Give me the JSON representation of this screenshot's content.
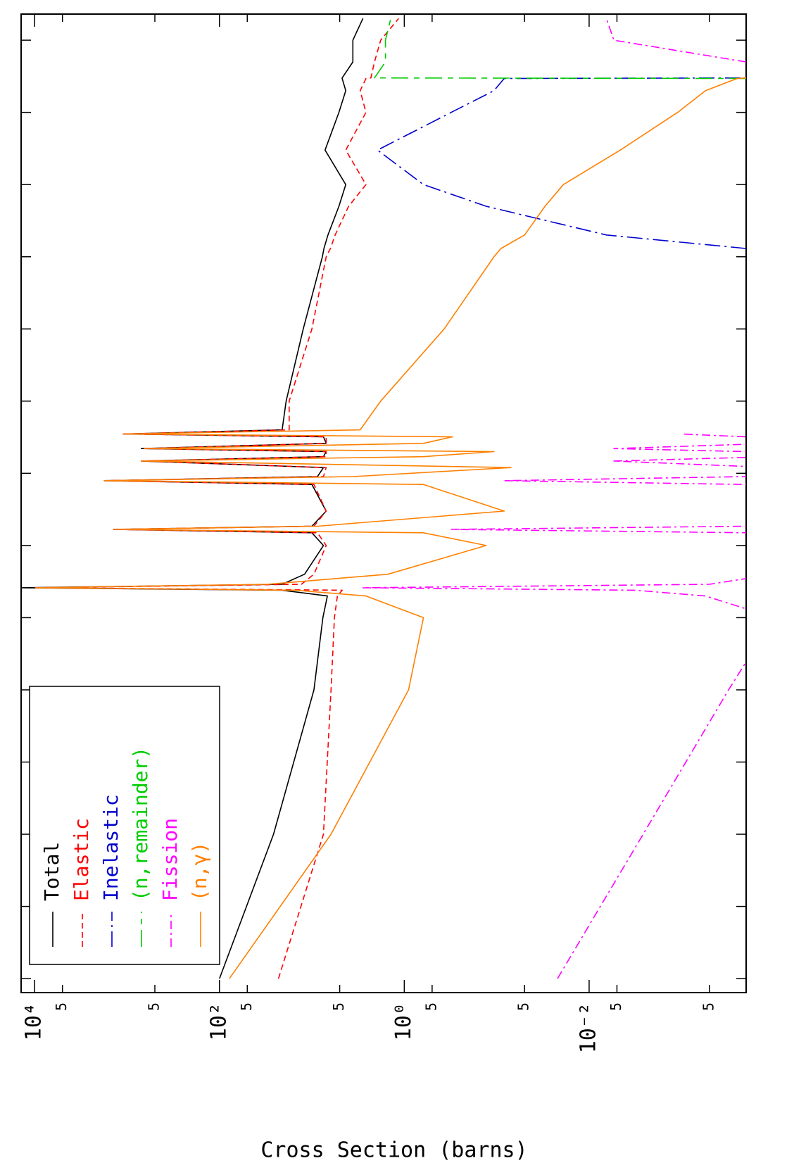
{
  "chart_data": {
    "type": "line",
    "y_label": "Cross Section (barns)",
    "xscale": "log",
    "yscale": "log",
    "xlim": [
      6.4e-07,
      23000000.0
    ],
    "ylim": [
      0.0002,
      14000
    ],
    "xticks": [
      1e-06,
      1e-05,
      0.0001,
      0.001,
      0.01,
      0.1,
      1,
      10,
      100,
      1000,
      10000,
      100000,
      1000000,
      10000000
    ],
    "yticks": [
      {
        "value": 10000,
        "label": "10⁴"
      },
      {
        "value": 5000,
        "label": "5"
      },
      {
        "value": 500,
        "label": "5"
      },
      {
        "value": 100,
        "label": "10²"
      },
      {
        "value": 50,
        "label": "5"
      },
      {
        "value": 5,
        "label": "5"
      },
      {
        "value": 1,
        "label": "10⁰"
      },
      {
        "value": 0.5,
        "label": "5"
      },
      {
        "value": 0.05,
        "label": "5"
      },
      {
        "value": 0.01,
        "label": "10⁻²"
      },
      {
        "value": 0.005,
        "label": "5"
      },
      {
        "value": 0.0005,
        "label": "5"
      }
    ],
    "grid": false,
    "legend": "upper left",
    "x": [
      1e-06,
      0.0001,
      0.01,
      0.1,
      0.2,
      0.24,
      0.26,
      0.29,
      0.4,
      1,
      1.5,
      1.67,
      1.85,
      3,
      7,
      7.9,
      9,
      12,
      14.8,
      17,
      20,
      22,
      26,
      32,
      35,
      40,
      100,
      1000,
      10000,
      13000,
      20000,
      50000,
      100000,
      300000,
      1000000,
      2000000,
      2950000,
      3000000,
      5000000,
      10000000,
      20000000
    ],
    "series": [
      {
        "name": "Total",
        "color": "#000000",
        "values": [
          100,
          26,
          9.5,
          7.6,
          6.8,
          21,
          14000,
          21,
          12,
          7.5,
          10,
          1400,
          10,
          7,
          10,
          1760,
          8.7,
          7.5,
          700,
          7.5,
          7,
          700,
          7,
          7.5,
          1100,
          21,
          19,
          12.4,
          7.7,
          7.4,
          6.7,
          5.1,
          4.3,
          7.2,
          5.1,
          4.3,
          4.7,
          4.7,
          3.6,
          3.6,
          2.8
        ]
      },
      {
        "name": "Elastic",
        "color": "#ff0000",
        "values": [
          23,
          7.5,
          6.2,
          5.7,
          5.3,
          4.7,
          9800,
          13,
          9.5,
          7,
          8.7,
          1400,
          9.5,
          7,
          9.5,
          1760,
          7.5,
          7,
          700,
          7,
          7,
          650,
          7,
          7,
          1100,
          17.6,
          17.6,
          10,
          7,
          6.3,
          5.6,
          4.0,
          2.6,
          4.3,
          2.6,
          3.0,
          2.6,
          2.3,
          2.1,
          1.8,
          1.15
        ]
      },
      {
        "name": "Inelastic",
        "color": "#0000cc",
        "values": [
          null,
          null,
          null,
          null,
          null,
          null,
          null,
          null,
          null,
          null,
          null,
          null,
          null,
          null,
          null,
          null,
          null,
          null,
          null,
          null,
          null,
          null,
          null,
          null,
          null,
          null,
          null,
          null,
          null,
          0.0002,
          0.0065,
          0.13,
          0.62,
          1.95,
          0.31,
          0.107,
          0.083,
          0.0002,
          null,
          null,
          null
        ]
      },
      {
        "name": "(n,remainder)",
        "color": "#00cc00",
        "values": [
          null,
          null,
          null,
          null,
          null,
          null,
          null,
          null,
          null,
          null,
          null,
          null,
          null,
          null,
          null,
          null,
          null,
          null,
          null,
          null,
          null,
          null,
          null,
          null,
          null,
          null,
          null,
          null,
          null,
          null,
          null,
          null,
          null,
          null,
          null,
          null,
          0.0002,
          2.1,
          1.6,
          1.6,
          1.4
        ]
      },
      {
        "name": "Fission",
        "color": "#ff00ff",
        "values": [
          0.022,
          0.0026,
          0.00031,
          0.0001,
          0.00055,
          0.0032,
          2.8,
          0.0005,
          0.0001,
          0.0001,
          0.0002,
          0.31,
          0.0002,
          0.0001,
          0.0002,
          0.083,
          0.0002,
          0.0001,
          0.0054,
          0.0001,
          0.0002,
          0.0054,
          0.0001,
          0.0002,
          0.001,
          null,
          null,
          null,
          null,
          null,
          null,
          null,
          null,
          null,
          null,
          null,
          null,
          null,
          0.0002,
          0.0054,
          0.0065
        ]
      },
      {
        "name": "(n,γ)",
        "color": "#ff8000",
        "values": [
          78,
          6.2,
          0.9,
          0.62,
          2.6,
          15,
          9800,
          30,
          1.5,
          0.13,
          0.62,
          1400,
          8.7,
          0.083,
          0.62,
          1760,
          3.6,
          0.07,
          700,
          0.62,
          0.107,
          650,
          0.62,
          0.3,
          1100,
          3.0,
          1.8,
          0.37,
          0.107,
          0.09,
          0.05,
          0.03,
          0.019,
          0.0046,
          0.0011,
          0.00055,
          0.00025,
          0.0002,
          null,
          null,
          null
        ]
      }
    ]
  }
}
